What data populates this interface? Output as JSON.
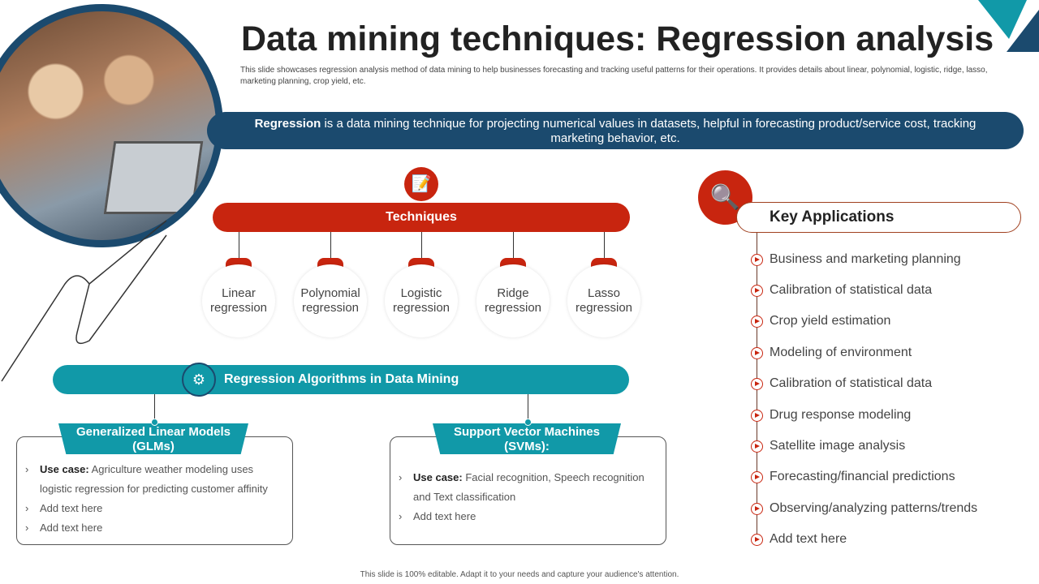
{
  "title": "Data mining techniques: Regression analysis",
  "subtitle": "This slide showcases regression analysis method of data mining to help businesses forecasting and tracking useful patterns for their operations. It provides details about linear, polynomial, logistic, ridge, lasso, marketing planning, crop yield, etc.",
  "banner": {
    "bold": "Regression",
    "text": " is a data mining technique for projecting numerical values in datasets, helpful in forecasting product/service cost, tracking marketing behavior, etc."
  },
  "techniques": {
    "label": "Techniques",
    "icon": "document-icon",
    "items": [
      "Linear regression",
      "Polynomial regression",
      "Logistic regression",
      "Ridge regression",
      "Lasso regression"
    ]
  },
  "algorithms": {
    "label": "Regression  Algorithms in Data Mining",
    "icon": "gears-bulb-icon",
    "glm": {
      "title": "Generalized Linear Models (GLMs)",
      "usecase_label": "Use case:",
      "usecase": " Agriculture weather modeling uses logistic regression for predicting customer affinity",
      "items": [
        "Add text here",
        "Add text here"
      ]
    },
    "svm": {
      "title": "Support Vector Machines (SVMs):",
      "usecase_label": "Use case:",
      "usecase": " Facial recognition, Speech recognition and Text classification",
      "items": [
        "Add text here"
      ]
    }
  },
  "key_applications": {
    "title": "Key Applications",
    "icon": "bulb-magnifier-icon",
    "items": [
      "Business and marketing planning",
      "Calibration of statistical data",
      "Crop yield estimation",
      "Modeling of environment",
      "Calibration of statistical data",
      "Drug response modeling",
      "Satellite image analysis",
      "Forecasting/financial predictions",
      "Observing/analyzing  patterns/trends",
      "Add text here"
    ]
  },
  "footer": "This slide is 100% editable. Adapt it to your needs and capture your audience's attention.",
  "colors": {
    "navy": "#1b4a6e",
    "red": "#c8250f",
    "teal": "#1199a8"
  }
}
